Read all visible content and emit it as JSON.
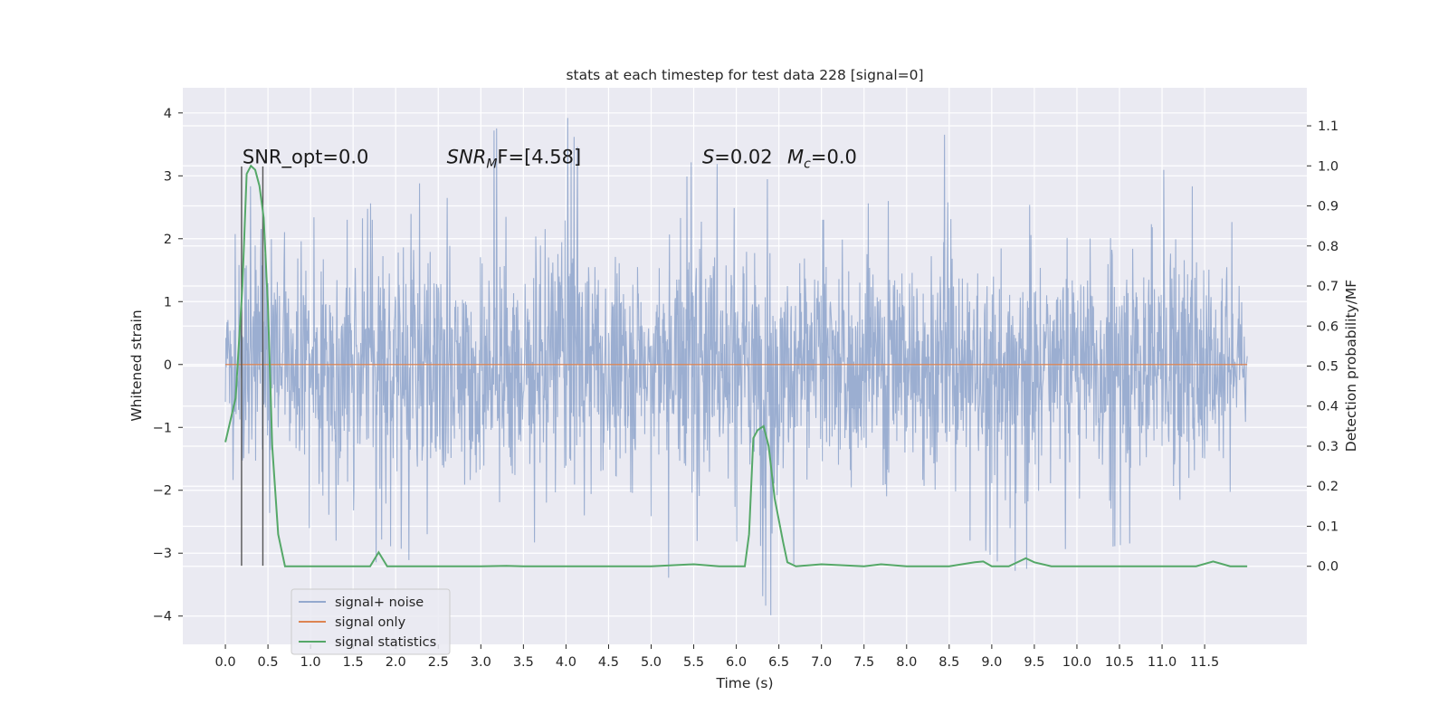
{
  "chart_data": {
    "type": "line",
    "title": "stats at each timestep for test data 228 [signal=0]",
    "xlabel": "Time (s)",
    "ylabel": "Whitened strain",
    "y2label": "Detection probability/MF",
    "xlim": [
      -0.5,
      12.7
    ],
    "ylim": [
      -4.45,
      4.4
    ],
    "y2lim": [
      -0.195,
      1.195
    ],
    "xticks": [
      0.0,
      0.5,
      1.0,
      1.5,
      2.0,
      2.5,
      3.0,
      3.5,
      4.0,
      4.5,
      5.0,
      5.5,
      6.0,
      6.5,
      7.0,
      7.5,
      8.0,
      8.5,
      9.0,
      9.5,
      10.0,
      10.5,
      11.0,
      11.5
    ],
    "xtick_labels": [
      "0.0",
      "0.5",
      "1.0",
      "1.5",
      "2.0",
      "2.5",
      "3.0",
      "3.5",
      "4.0",
      "4.5",
      "5.0",
      "5.5",
      "6.0",
      "6.5",
      "7.0",
      "7.5",
      "8.0",
      "8.5",
      "9.0",
      "9.5",
      "10.0",
      "10.5",
      "11.0",
      "11.5"
    ],
    "yticks": [
      -4,
      -3,
      -2,
      -1,
      0,
      1,
      2,
      3,
      4
    ],
    "ytick_labels": [
      "−4",
      "−3",
      "−2",
      "−1",
      "0",
      "1",
      "2",
      "3",
      "4"
    ],
    "y2ticks": [
      0.0,
      0.1,
      0.2,
      0.3,
      0.4,
      0.5,
      0.6,
      0.7,
      0.8,
      0.9,
      1.0,
      1.1
    ],
    "y2tick_labels": [
      "0.0",
      "0.1",
      "0.2",
      "0.3",
      "0.4",
      "0.5",
      "0.6",
      "0.7",
      "0.8",
      "0.9",
      "1.0",
      "1.1"
    ],
    "grid": true,
    "legend_position": "lower-left",
    "series": [
      {
        "name": "signal+ noise",
        "axis": "left",
        "color": "#4c72b0",
        "x_range": [
          0.0,
          12.0
        ],
        "envelope": {
          "x": [
            0.0,
            0.2,
            0.4,
            0.8,
            1.2,
            1.6,
            2.0,
            2.4,
            2.8,
            3.2,
            3.6,
            4.0,
            4.4,
            4.8,
            5.2,
            5.6,
            6.0,
            6.4,
            6.8,
            7.2,
            7.6,
            8.0,
            8.4,
            8.8,
            9.2,
            9.6,
            10.0,
            10.4,
            10.8,
            11.2,
            11.6,
            12.0
          ],
          "upper": [
            1.5,
            2.5,
            3.2,
            2.4,
            2.3,
            2.3,
            3.3,
            2.7,
            2.6,
            3.8,
            2.4,
            4.0,
            2.4,
            2.6,
            2.0,
            3.8,
            2.4,
            3.0,
            2.3,
            2.3,
            2.6,
            2.6,
            3.8,
            2.5,
            2.6,
            2.5,
            2.4,
            2.9,
            3.7,
            2.6,
            3.2,
            1.5
          ],
          "lower": [
            -1.6,
            -2.8,
            -2.6,
            -2.6,
            -2.6,
            -3.4,
            -2.8,
            -3.6,
            -3.0,
            -3.2,
            -2.8,
            -3.2,
            -2.7,
            -2.8,
            -3.4,
            -2.7,
            -2.8,
            -4.0,
            -2.8,
            -3.1,
            -2.8,
            -2.9,
            -2.8,
            -2.8,
            -3.3,
            -3.2,
            -2.8,
            -2.9,
            -2.8,
            -3.4,
            -2.6,
            -1.6
          ]
        }
      },
      {
        "name": "signal only",
        "axis": "left",
        "color": "#dd8452",
        "x": [
          0.0,
          12.0
        ],
        "y": [
          0.0,
          0.0
        ]
      },
      {
        "name": "signal statistics",
        "axis": "right",
        "color": "#55a868",
        "x": [
          0.0,
          0.12,
          0.2,
          0.25,
          0.3,
          0.35,
          0.4,
          0.45,
          0.5,
          0.55,
          0.62,
          0.7,
          1.0,
          1.5,
          1.7,
          1.8,
          1.9,
          2.2,
          3.0,
          3.3,
          3.5,
          4.0,
          5.0,
          5.5,
          5.8,
          6.1,
          6.15,
          6.2,
          6.25,
          6.32,
          6.38,
          6.45,
          6.55,
          6.6,
          6.7,
          7.0,
          7.5,
          7.7,
          8.0,
          8.5,
          8.8,
          8.9,
          9.0,
          9.2,
          9.4,
          9.5,
          9.7,
          10.0,
          11.0,
          11.4,
          11.6,
          11.8,
          12.0
        ],
        "y": [
          0.31,
          0.42,
          0.7,
          0.98,
          1.0,
          0.99,
          0.95,
          0.87,
          0.65,
          0.3,
          0.08,
          0.0,
          0.0,
          0.0,
          0.0,
          0.035,
          0.0,
          0.0,
          0.0,
          0.001,
          0.0,
          0.0,
          0.0,
          0.005,
          0.0,
          0.0,
          0.08,
          0.32,
          0.34,
          0.35,
          0.3,
          0.17,
          0.06,
          0.01,
          0.0,
          0.005,
          0.0,
          0.005,
          0.0,
          0.0,
          0.01,
          0.012,
          0.0,
          0.0,
          0.02,
          0.01,
          0.0,
          0.0,
          0.0,
          0.0,
          0.012,
          0.0,
          0.0
        ]
      }
    ],
    "vertical_lines": [
      {
        "x": 0.19,
        "y_from": -3.2,
        "y_to": 3.15,
        "color": "#555555"
      },
      {
        "x": 0.44,
        "y_from": -3.2,
        "y_to": 3.15,
        "color": "#555555"
      }
    ],
    "annotations": [
      {
        "id": "snr-opt",
        "text": "SNR_opt=0.0",
        "x": 0.2,
        "y": 3.2
      },
      {
        "id": "snr-mf",
        "text": "SNR",
        "sub": "M",
        "rest": "F=[4.58]",
        "italic_prefix": true,
        "x": 2.6,
        "y": 3.2
      },
      {
        "id": "s-val",
        "text": "S",
        "rest": "=0.02",
        "italic_prefix": true,
        "x": 5.6,
        "y": 3.2
      },
      {
        "id": "mc-val",
        "text": "M",
        "sub": "c",
        "rest": "=0.0",
        "italic_prefix": true,
        "x": 6.6,
        "y": 3.2
      }
    ],
    "legend": [
      {
        "label": "signal+ noise",
        "color": "#4c72b0"
      },
      {
        "label": "signal only",
        "color": "#dd8452"
      },
      {
        "label": "signal statistics",
        "color": "#55a868"
      }
    ],
    "colors": {
      "plot_background": "#eaeaf2",
      "grid": "#ffffff",
      "noise": "#4c72b0",
      "signal": "#dd8452",
      "statistics": "#55a868"
    }
  }
}
